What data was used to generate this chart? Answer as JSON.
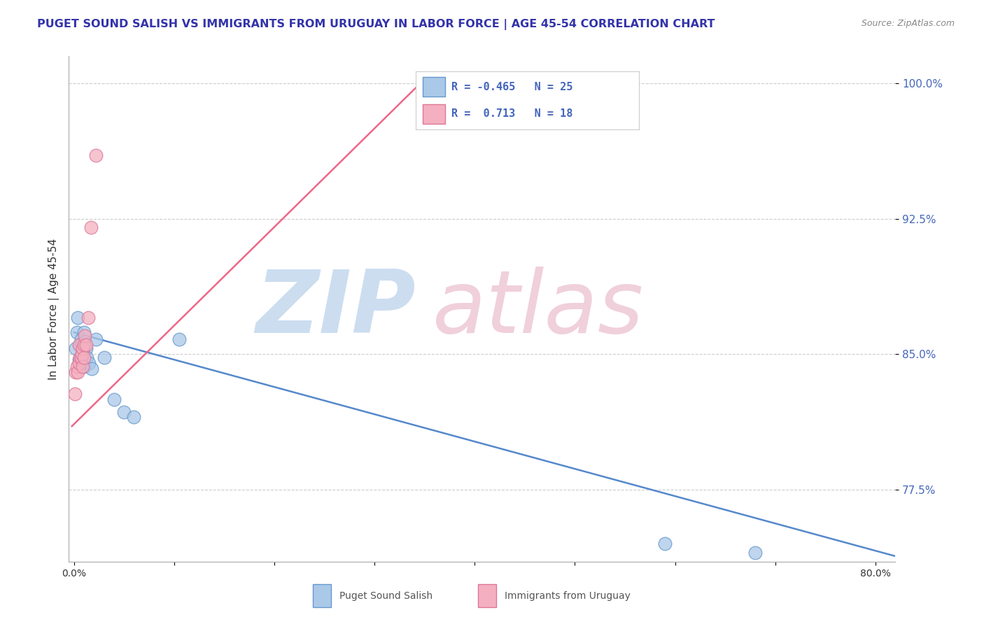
{
  "title": "PUGET SOUND SALISH VS IMMIGRANTS FROM URUGUAY IN LABOR FORCE | AGE 45-54 CORRELATION CHART",
  "source_text": "Source: ZipAtlas.com",
  "ylabel": "In Labor Force | Age 45-54",
  "xlabel": "",
  "blue_label": "Puget Sound Salish",
  "pink_label": "Immigrants from Uruguay",
  "blue_R": -0.465,
  "blue_N": 25,
  "pink_R": 0.713,
  "pink_N": 18,
  "xlim": [
    -0.005,
    0.82
  ],
  "ylim": [
    0.735,
    1.015
  ],
  "xtick_positions": [
    0.0,
    0.1,
    0.2,
    0.3,
    0.4,
    0.5,
    0.6,
    0.7,
    0.8
  ],
  "xticklabels": [
    "0.0%",
    "",
    "",
    "",
    "",
    "",
    "",
    "",
    "80.0%"
  ],
  "ytick_positions": [
    0.775,
    0.85,
    0.925,
    1.0
  ],
  "yticklabels": [
    "77.5%",
    "85.0%",
    "92.5%",
    "100.0%"
  ],
  "blue_scatter_x": [
    0.002,
    0.003,
    0.004,
    0.005,
    0.006,
    0.007,
    0.007,
    0.008,
    0.008,
    0.009,
    0.01,
    0.01,
    0.011,
    0.012,
    0.013,
    0.015,
    0.018,
    0.022,
    0.03,
    0.04,
    0.05,
    0.06,
    0.105,
    0.59,
    0.68
  ],
  "blue_scatter_y": [
    0.853,
    0.862,
    0.87,
    0.847,
    0.855,
    0.858,
    0.843,
    0.849,
    0.856,
    0.852,
    0.862,
    0.843,
    0.857,
    0.853,
    0.848,
    0.845,
    0.842,
    0.858,
    0.848,
    0.825,
    0.818,
    0.815,
    0.858,
    0.745,
    0.74
  ],
  "pink_scatter_x": [
    0.001,
    0.002,
    0.003,
    0.004,
    0.005,
    0.005,
    0.006,
    0.007,
    0.008,
    0.009,
    0.009,
    0.01,
    0.01,
    0.011,
    0.012,
    0.014,
    0.017,
    0.022
  ],
  "pink_scatter_y": [
    0.828,
    0.84,
    0.843,
    0.84,
    0.845,
    0.855,
    0.848,
    0.848,
    0.85,
    0.853,
    0.843,
    0.848,
    0.855,
    0.86,
    0.855,
    0.87,
    0.92,
    0.96
  ],
  "blue_line_x": [
    0.0,
    0.82
  ],
  "blue_line_y": [
    0.862,
    0.738
  ],
  "pink_line_x": [
    -0.002,
    0.355
  ],
  "pink_line_y": [
    0.81,
    1.005
  ],
  "title_color": "#3333aa",
  "blue_color": "#aac8e8",
  "pink_color": "#f4b0c0",
  "blue_edge_color": "#6699cc",
  "pink_edge_color": "#dd7799",
  "blue_line_color": "#5588cc",
  "pink_line_color": "#ee6688",
  "grid_color": "#cccccc",
  "source_color": "#888888",
  "watermark_zip_color": "#ccddf0",
  "watermark_atlas_color": "#f0d0da",
  "legend_border_color": "#cccccc",
  "ytick_color": "#4466bb"
}
